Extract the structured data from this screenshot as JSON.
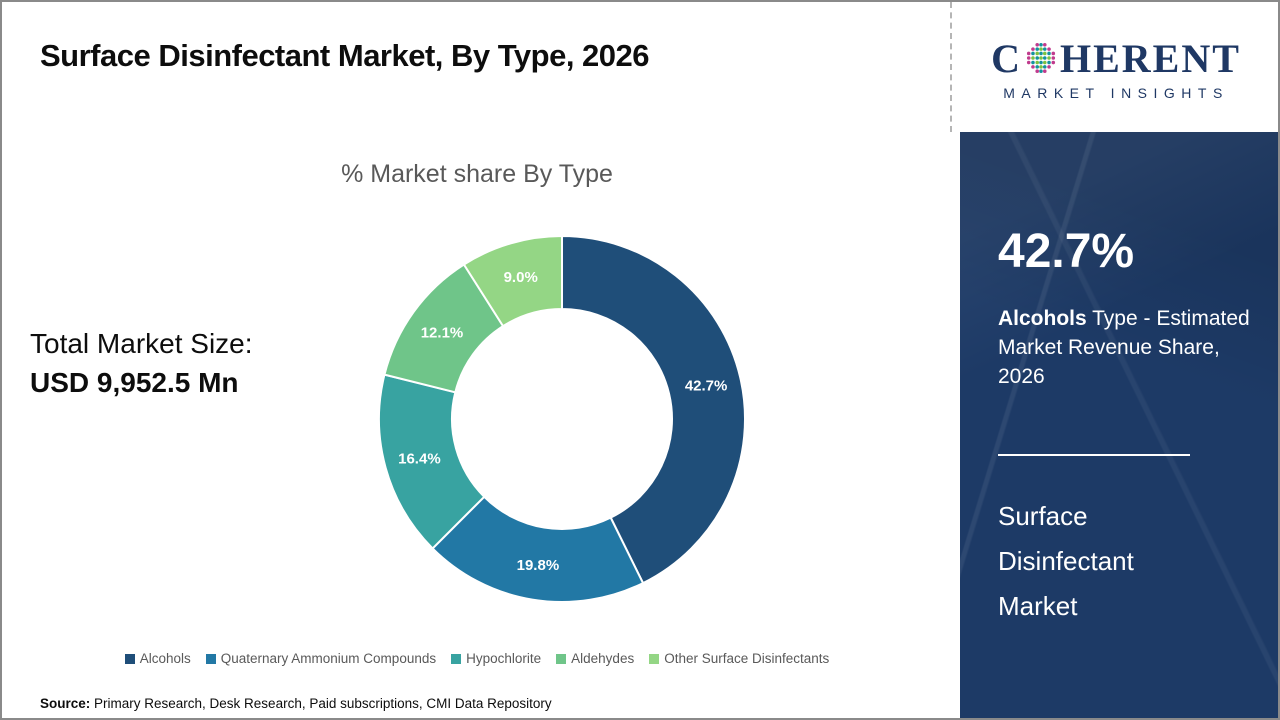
{
  "page": {
    "title": "Surface Disinfectant Market, By Type, 2026"
  },
  "logo": {
    "word_pre": "C",
    "word_post": "HERENT",
    "tagline": "MARKET INSIGHTS"
  },
  "left_panel": {
    "total_label": "Total Market Size:",
    "total_value": "USD 9,952.5 Mn"
  },
  "chart_data": {
    "type": "pie",
    "subtype": "donut",
    "title": "% Market share By Type",
    "categories": [
      "Alcohols",
      "Quaternary Ammonium Compounds",
      "Hypochlorite",
      "Aldehydes",
      "Other Surface Disinfectants"
    ],
    "values": [
      42.7,
      19.8,
      16.4,
      12.1,
      9.0
    ],
    "labels": [
      "42.7%",
      "19.8%",
      "16.4%",
      "12.1%",
      "9.0%"
    ],
    "colors": [
      "#1f4e79",
      "#2278a5",
      "#38a3a1",
      "#6fc589",
      "#94d685"
    ],
    "hole_ratio": 0.6,
    "start_angle_deg": 0,
    "direction": "clockwise",
    "legend_position": "bottom"
  },
  "sidebar": {
    "bg_color": "#1d3a66",
    "stat_value": "42.7%",
    "stat_desc_bold": "Alcohols",
    "stat_desc_rest": " Type - Estimated Market Revenue Share, 2026",
    "report_title": "Surface Disinfectant Market"
  },
  "footer": {
    "source_label": "Source:",
    "source_text": " Primary Research, Desk Research, Paid subscriptions, CMI Data Repository"
  }
}
